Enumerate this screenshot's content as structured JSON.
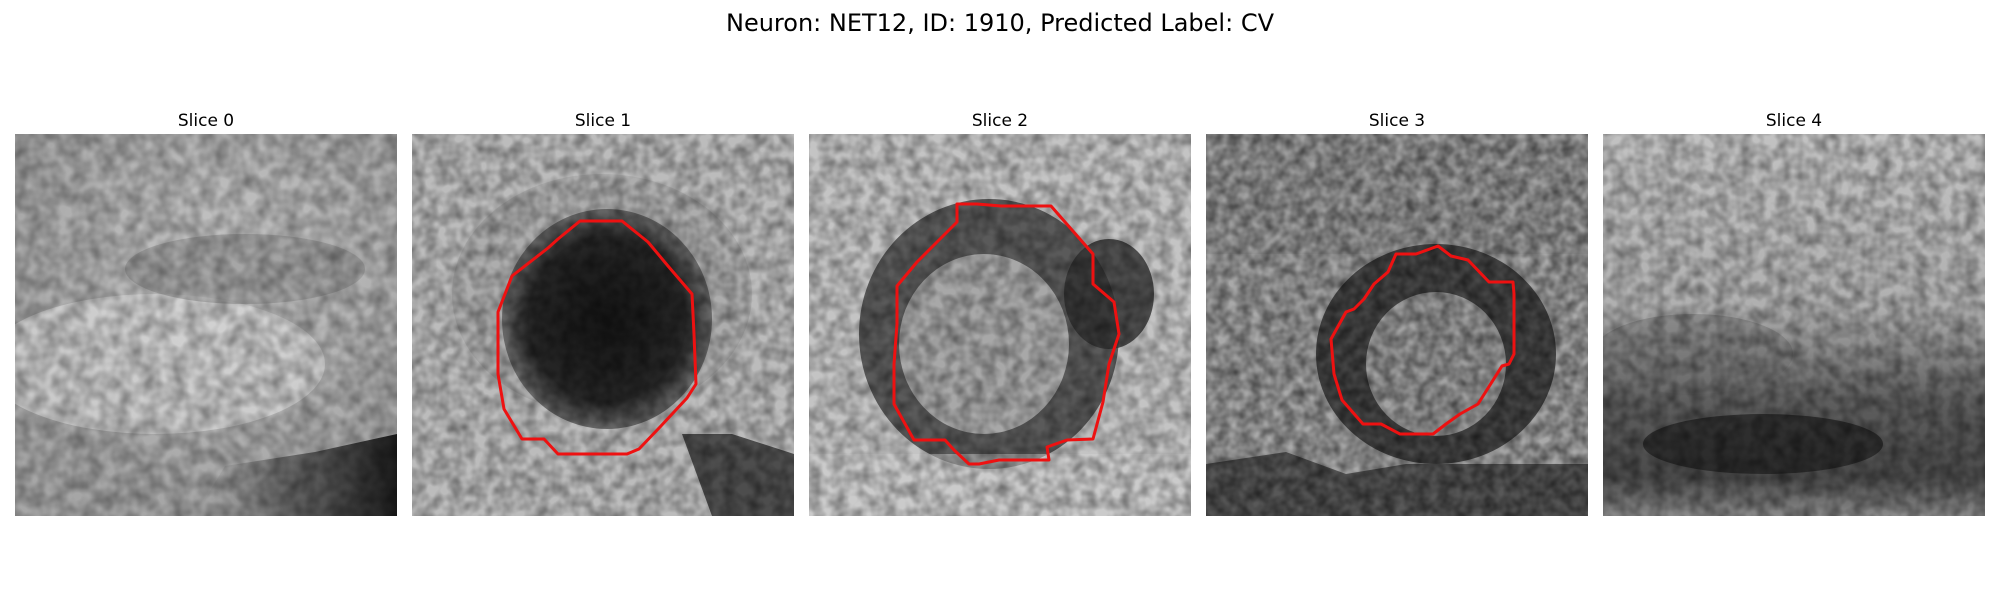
{
  "figure": {
    "title": "Neuron: NET12, ID: 1910, Predicted Label: CV"
  },
  "colors": {
    "contour": "#ee1111",
    "background": "#ffffff"
  },
  "panels": [
    {
      "title": "Slice 0",
      "image": "grayscale microscopy patch, bright upper-left region with dark band at bottom-right",
      "has_contour": false
    },
    {
      "title": "Slice 1",
      "image": "grayscale microscopy patch with dark round blob in center",
      "has_contour": true
    },
    {
      "title": "Slice 2",
      "image": "grayscale microscopy patch with dark ring around lighter center",
      "has_contour": true
    },
    {
      "title": "Slice 3",
      "image": "grayscale microscopy patch with small dark ring, noisy texture",
      "has_contour": true
    },
    {
      "title": "Slice 4",
      "image": "grayscale microscopy patch, light top with dark band at bottom",
      "has_contour": false
    }
  ]
}
